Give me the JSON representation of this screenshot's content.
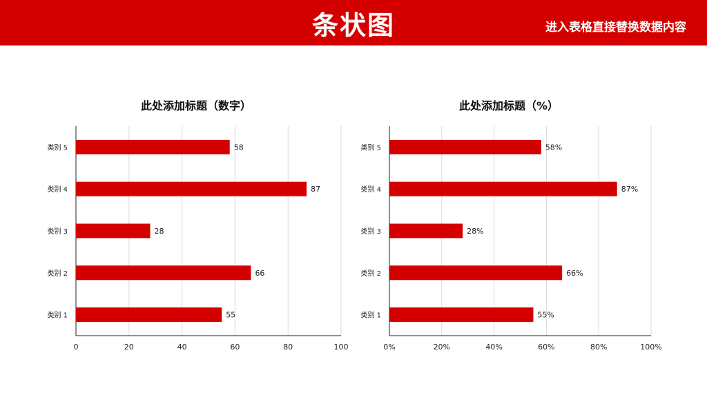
{
  "header": {
    "title": "条状图",
    "note": "进入表格直接替换数据内容"
  },
  "colors": {
    "header_bg": "#d40000",
    "bar": "#d40000",
    "grid": "#d9d9d9",
    "axis": "#222222"
  },
  "chart_data": [
    {
      "type": "bar",
      "orientation": "horizontal",
      "title": "此处添加标题（数字）",
      "categories": [
        "类别 1",
        "类别 2",
        "类别 3",
        "类别 4",
        "类别 5"
      ],
      "values": [
        55,
        66,
        28,
        87,
        58
      ],
      "data_labels": [
        "55",
        "66",
        "28",
        "87",
        "58"
      ],
      "xlim": [
        0,
        100
      ],
      "xticks": [
        0,
        20,
        40,
        60,
        80,
        100
      ],
      "xtick_labels": [
        "0",
        "20",
        "40",
        "60",
        "80",
        "100"
      ],
      "grid": true
    },
    {
      "type": "bar",
      "orientation": "horizontal",
      "title": "此处添加标题（%）",
      "categories": [
        "类别 1",
        "类别 2",
        "类别 3",
        "类别 4",
        "类别 5"
      ],
      "values": [
        55,
        66,
        28,
        87,
        58
      ],
      "data_labels": [
        "55%",
        "66%",
        "28%",
        "87%",
        "58%"
      ],
      "xlim": [
        0,
        100
      ],
      "xticks": [
        0,
        20,
        40,
        60,
        80,
        100
      ],
      "xtick_labels": [
        "0%",
        "20%",
        "40%",
        "60%",
        "80%",
        "100%"
      ],
      "grid": true
    }
  ]
}
